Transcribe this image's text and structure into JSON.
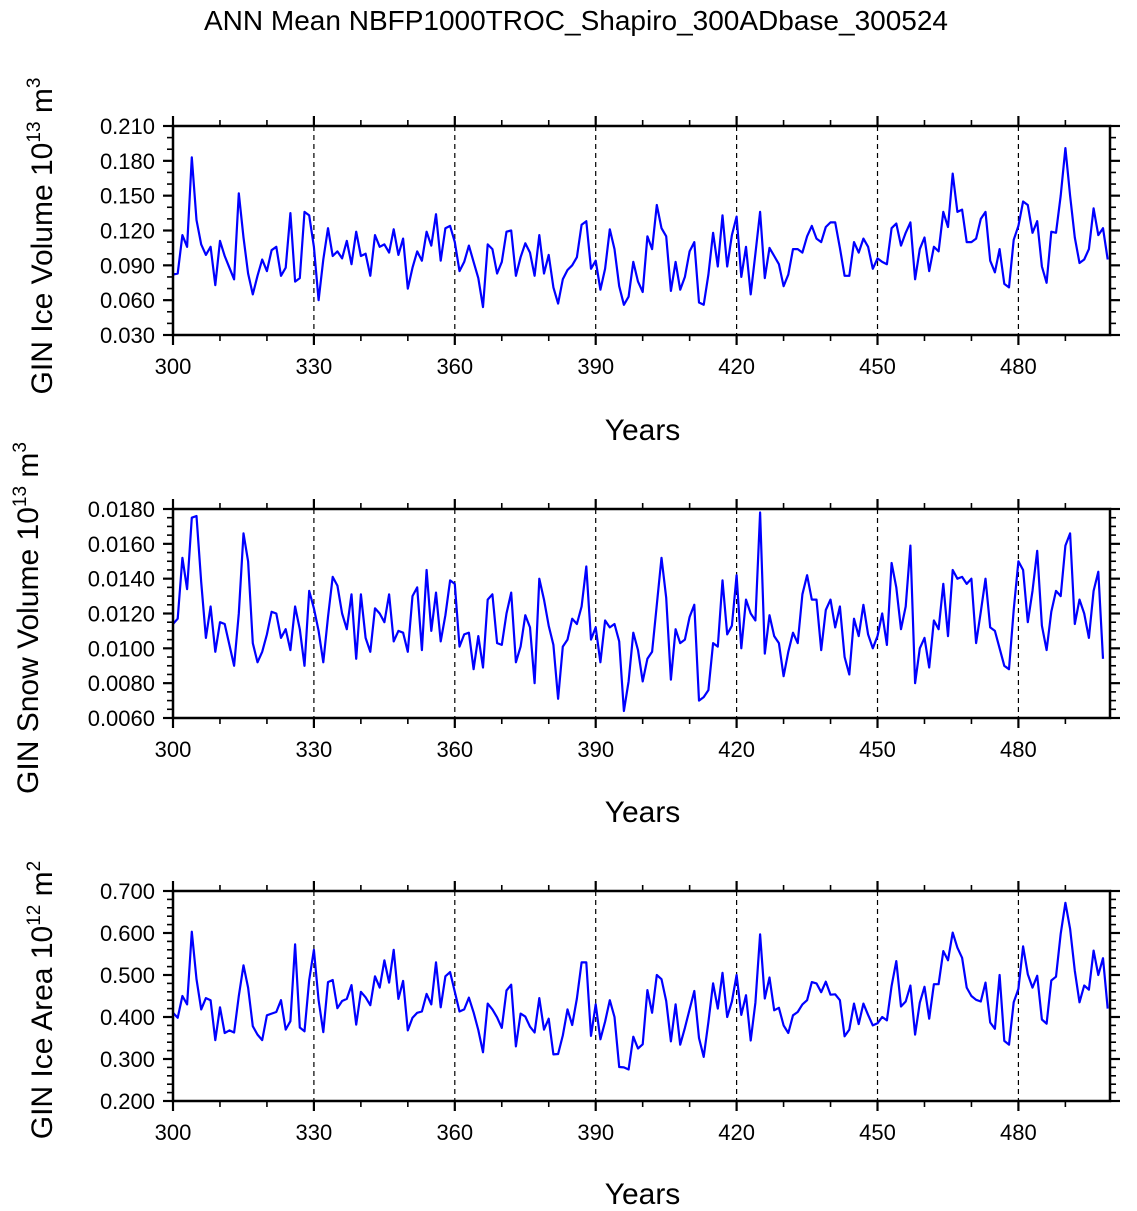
{
  "figure_title": "ANN Mean NBFP1000TROC_Shapiro_300ADbase_300524",
  "chart_data": [
    {
      "type": "line",
      "title": "ANN Mean NBFP1000TROC_Shapiro_300ADbase_300524",
      "ylabel": "GIN Ice Volume",
      "ylabel_unit_base": "10",
      "ylabel_unit_exp": "13",
      "ylabel_unit_m": "m",
      "ylabel_unit_m_exp": "3",
      "xlabel": "Years",
      "xlim": [
        300,
        499.5
      ],
      "ylim": [
        0.03,
        0.21
      ],
      "yticks": [
        0.03,
        0.06,
        0.09,
        0.12,
        0.15,
        0.18,
        0.21
      ],
      "ytick_labels": [
        "0.030",
        "0.060",
        "0.090",
        "0.120",
        "0.150",
        "0.180",
        "0.210"
      ],
      "yminor_step": 0.01,
      "xticks": [
        300,
        330,
        360,
        390,
        420,
        450,
        480
      ],
      "xtick_labels": [
        "300",
        "330",
        "360",
        "390",
        "420",
        "450",
        "480"
      ],
      "xminor_step": 10,
      "gridlines_x": [
        330,
        360,
        390,
        420,
        450,
        480
      ],
      "line_color": "#0000ff",
      "x_start": 300,
      "values": [
        0.082,
        0.083,
        0.116,
        0.106,
        0.183,
        0.129,
        0.108,
        0.099,
        0.106,
        0.073,
        0.111,
        0.098,
        0.088,
        0.078,
        0.152,
        0.114,
        0.083,
        0.065,
        0.081,
        0.095,
        0.085,
        0.103,
        0.106,
        0.081,
        0.088,
        0.135,
        0.076,
        0.079,
        0.136,
        0.133,
        0.106,
        0.06,
        0.095,
        0.122,
        0.098,
        0.102,
        0.096,
        0.111,
        0.091,
        0.119,
        0.098,
        0.1,
        0.081,
        0.116,
        0.106,
        0.108,
        0.101,
        0.121,
        0.099,
        0.113,
        0.07,
        0.088,
        0.102,
        0.094,
        0.119,
        0.107,
        0.134,
        0.094,
        0.122,
        0.124,
        0.11,
        0.085,
        0.093,
        0.107,
        0.093,
        0.079,
        0.054,
        0.108,
        0.104,
        0.083,
        0.093,
        0.119,
        0.12,
        0.081,
        0.097,
        0.109,
        0.101,
        0.081,
        0.116,
        0.083,
        0.099,
        0.071,
        0.057,
        0.078,
        0.086,
        0.09,
        0.097,
        0.125,
        0.128,
        0.087,
        0.094,
        0.069,
        0.087,
        0.121,
        0.104,
        0.072,
        0.056,
        0.063,
        0.093,
        0.076,
        0.067,
        0.115,
        0.104,
        0.142,
        0.122,
        0.115,
        0.068,
        0.093,
        0.069,
        0.08,
        0.102,
        0.11,
        0.058,
        0.056,
        0.082,
        0.118,
        0.089,
        0.133,
        0.089,
        0.116,
        0.132,
        0.08,
        0.106,
        0.065,
        0.1,
        0.136,
        0.079,
        0.105,
        0.098,
        0.091,
        0.072,
        0.082,
        0.104,
        0.104,
        0.101,
        0.115,
        0.124,
        0.113,
        0.11,
        0.123,
        0.127,
        0.127,
        0.105,
        0.081,
        0.081,
        0.11,
        0.101,
        0.113,
        0.106,
        0.087,
        0.096,
        0.093,
        0.091,
        0.122,
        0.126,
        0.107,
        0.118,
        0.127,
        0.078,
        0.104,
        0.114,
        0.085,
        0.106,
        0.102,
        0.136,
        0.123,
        0.169,
        0.136,
        0.138,
        0.11,
        0.11,
        0.113,
        0.13,
        0.136,
        0.094,
        0.084,
        0.104,
        0.074,
        0.071,
        0.112,
        0.124,
        0.145,
        0.142,
        0.118,
        0.128,
        0.089,
        0.075,
        0.119,
        0.118,
        0.15,
        0.191,
        0.15,
        0.114,
        0.092,
        0.095,
        0.104,
        0.139,
        0.116,
        0.122,
        0.095
      ]
    },
    {
      "type": "line",
      "title": "",
      "ylabel": "GIN Snow Volume",
      "ylabel_unit_base": "10",
      "ylabel_unit_exp": "13",
      "ylabel_unit_m": "m",
      "ylabel_unit_m_exp": "3",
      "xlabel": "Years",
      "xlim": [
        300,
        499.5
      ],
      "ylim": [
        0.006,
        0.018
      ],
      "yticks": [
        0.006,
        0.008,
        0.01,
        0.012,
        0.014,
        0.016,
        0.018
      ],
      "ytick_labels": [
        "0.0060",
        "0.0080",
        "0.0100",
        "0.0120",
        "0.0140",
        "0.0160",
        "0.0180"
      ],
      "yminor_step": 0.0005,
      "xticks": [
        300,
        330,
        360,
        390,
        420,
        450,
        480
      ],
      "xtick_labels": [
        "300",
        "330",
        "360",
        "390",
        "420",
        "450",
        "480"
      ],
      "xminor_step": 10,
      "gridlines_x": [
        330,
        360,
        390,
        420,
        450,
        480
      ],
      "line_color": "#0000ff",
      "x_start": 300,
      "values": [
        0.0114,
        0.0117,
        0.0152,
        0.0134,
        0.0175,
        0.0176,
        0.0138,
        0.0106,
        0.0124,
        0.0098,
        0.0115,
        0.0114,
        0.0102,
        0.009,
        0.012,
        0.0166,
        0.015,
        0.0103,
        0.0092,
        0.0098,
        0.0108,
        0.0121,
        0.012,
        0.0106,
        0.0111,
        0.0099,
        0.0124,
        0.0111,
        0.009,
        0.0133,
        0.0123,
        0.011,
        0.0092,
        0.0118,
        0.0141,
        0.0136,
        0.012,
        0.0111,
        0.0131,
        0.0094,
        0.0131,
        0.0106,
        0.0098,
        0.0123,
        0.012,
        0.0115,
        0.0131,
        0.0104,
        0.011,
        0.0109,
        0.0098,
        0.013,
        0.0135,
        0.0099,
        0.0145,
        0.011,
        0.0132,
        0.0104,
        0.0119,
        0.0139,
        0.0137,
        0.0101,
        0.0108,
        0.0109,
        0.0088,
        0.0107,
        0.0089,
        0.0128,
        0.0131,
        0.0103,
        0.0102,
        0.012,
        0.0132,
        0.0092,
        0.0101,
        0.0119,
        0.0112,
        0.008,
        0.014,
        0.0128,
        0.0113,
        0.0102,
        0.0071,
        0.0101,
        0.0105,
        0.0117,
        0.0114,
        0.0124,
        0.0147,
        0.0105,
        0.0112,
        0.0092,
        0.0116,
        0.0112,
        0.0114,
        0.0104,
        0.0064,
        0.0081,
        0.0109,
        0.0099,
        0.0081,
        0.0094,
        0.0098,
        0.0125,
        0.0152,
        0.0129,
        0.0082,
        0.0111,
        0.0103,
        0.0105,
        0.0118,
        0.0125,
        0.007,
        0.0072,
        0.0076,
        0.0103,
        0.0101,
        0.0139,
        0.0108,
        0.0113,
        0.0142,
        0.01,
        0.0128,
        0.012,
        0.0116,
        0.0178,
        0.0097,
        0.0119,
        0.0107,
        0.0103,
        0.0084,
        0.0098,
        0.0109,
        0.0103,
        0.0131,
        0.0142,
        0.0128,
        0.0128,
        0.0099,
        0.0122,
        0.0128,
        0.0112,
        0.0124,
        0.0095,
        0.0085,
        0.0117,
        0.0107,
        0.0125,
        0.0108,
        0.01,
        0.0107,
        0.012,
        0.0102,
        0.0149,
        0.0135,
        0.0111,
        0.0124,
        0.0159,
        0.008,
        0.01,
        0.0106,
        0.0089,
        0.0116,
        0.0111,
        0.0137,
        0.0107,
        0.0145,
        0.014,
        0.0141,
        0.0137,
        0.014,
        0.0103,
        0.0121,
        0.014,
        0.0112,
        0.011,
        0.01,
        0.009,
        0.0088,
        0.0122,
        0.015,
        0.0145,
        0.0115,
        0.0133,
        0.0156,
        0.0113,
        0.0099,
        0.0121,
        0.0133,
        0.013,
        0.0159,
        0.0166,
        0.0114,
        0.0128,
        0.012,
        0.0106,
        0.0133,
        0.0144,
        0.0094
      ]
    },
    {
      "type": "line",
      "title": "",
      "ylabel": "GIN Ice Area",
      "ylabel_unit_base": "10",
      "ylabel_unit_exp": "12",
      "ylabel_unit_m": "m",
      "ylabel_unit_m_exp": "2",
      "xlabel": "Years",
      "xlim": [
        300,
        499.5
      ],
      "ylim": [
        0.2,
        0.7
      ],
      "yticks": [
        0.2,
        0.3,
        0.4,
        0.5,
        0.6,
        0.7
      ],
      "ytick_labels": [
        "0.200",
        "0.300",
        "0.400",
        "0.500",
        "0.600",
        "0.700"
      ],
      "yminor_step": 0.02,
      "xticks": [
        300,
        330,
        360,
        390,
        420,
        450,
        480
      ],
      "xtick_labels": [
        "300",
        "330",
        "360",
        "390",
        "420",
        "450",
        "480"
      ],
      "xminor_step": 10,
      "gridlines_x": [
        330,
        360,
        390,
        420,
        450,
        480
      ],
      "line_color": "#0000ff",
      "x_start": 300,
      "values": [
        0.41,
        0.398,
        0.45,
        0.43,
        0.603,
        0.49,
        0.418,
        0.445,
        0.44,
        0.345,
        0.423,
        0.362,
        0.368,
        0.363,
        0.45,
        0.523,
        0.47,
        0.378,
        0.358,
        0.345,
        0.404,
        0.408,
        0.412,
        0.44,
        0.37,
        0.39,
        0.573,
        0.375,
        0.366,
        0.488,
        0.56,
        0.44,
        0.364,
        0.483,
        0.488,
        0.421,
        0.438,
        0.443,
        0.476,
        0.382,
        0.46,
        0.447,
        0.428,
        0.497,
        0.47,
        0.535,
        0.482,
        0.56,
        0.443,
        0.486,
        0.368,
        0.398,
        0.41,
        0.413,
        0.455,
        0.43,
        0.53,
        0.423,
        0.497,
        0.507,
        0.46,
        0.413,
        0.418,
        0.446,
        0.411,
        0.369,
        0.316,
        0.432,
        0.418,
        0.399,
        0.374,
        0.463,
        0.477,
        0.33,
        0.408,
        0.401,
        0.377,
        0.363,
        0.445,
        0.37,
        0.396,
        0.311,
        0.312,
        0.356,
        0.418,
        0.381,
        0.444,
        0.53,
        0.53,
        0.355,
        0.43,
        0.347,
        0.389,
        0.44,
        0.4,
        0.281,
        0.28,
        0.275,
        0.353,
        0.325,
        0.335,
        0.464,
        0.41,
        0.5,
        0.49,
        0.438,
        0.342,
        0.43,
        0.334,
        0.374,
        0.418,
        0.462,
        0.35,
        0.305,
        0.388,
        0.48,
        0.42,
        0.505,
        0.4,
        0.437,
        0.5,
        0.405,
        0.452,
        0.344,
        0.434,
        0.597,
        0.444,
        0.494,
        0.416,
        0.422,
        0.38,
        0.362,
        0.404,
        0.412,
        0.43,
        0.44,
        0.483,
        0.48,
        0.459,
        0.484,
        0.453,
        0.454,
        0.44,
        0.354,
        0.37,
        0.432,
        0.383,
        0.432,
        0.405,
        0.38,
        0.385,
        0.4,
        0.392,
        0.474,
        0.533,
        0.425,
        0.437,
        0.475,
        0.358,
        0.434,
        0.472,
        0.396,
        0.478,
        0.478,
        0.557,
        0.535,
        0.601,
        0.565,
        0.541,
        0.47,
        0.45,
        0.441,
        0.437,
        0.482,
        0.387,
        0.372,
        0.5,
        0.343,
        0.334,
        0.435,
        0.467,
        0.568,
        0.502,
        0.47,
        0.498,
        0.394,
        0.384,
        0.487,
        0.496,
        0.598,
        0.672,
        0.61,
        0.51,
        0.435,
        0.475,
        0.465,
        0.558,
        0.5,
        0.54,
        0.42
      ]
    }
  ]
}
